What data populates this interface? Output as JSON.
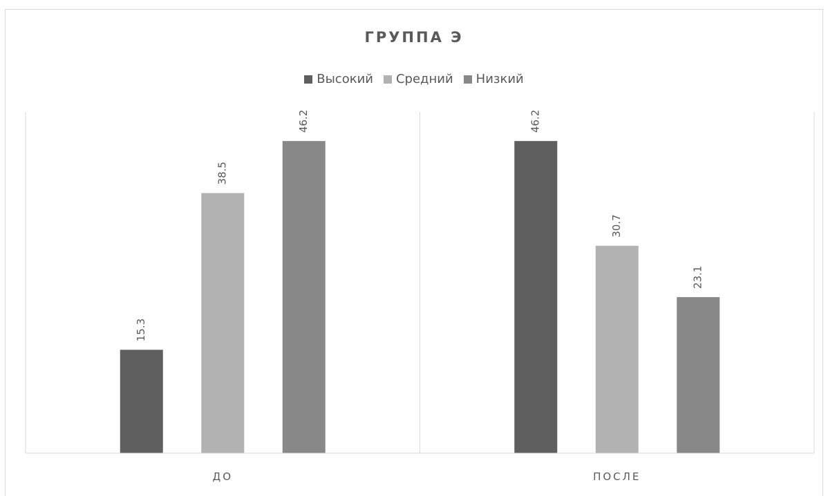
{
  "chart_data": {
    "type": "bar",
    "title": "ГРУППА Э",
    "xlabel": "",
    "ylabel": "",
    "categories": [
      "ДО",
      "ПОСЛЕ"
    ],
    "series": [
      {
        "name": "Высокий",
        "color": "#5f5f5f",
        "values": [
          15.3,
          46.2
        ]
      },
      {
        "name": "Средний",
        "color": "#b2b2b2",
        "values": [
          38.5,
          30.7
        ]
      },
      {
        "name": "Низкий",
        "color": "#888888",
        "values": [
          46.2,
          23.1
        ]
      }
    ],
    "ylim": [
      0,
      50
    ],
    "grid": false,
    "legend": "top",
    "data_labels": true
  }
}
